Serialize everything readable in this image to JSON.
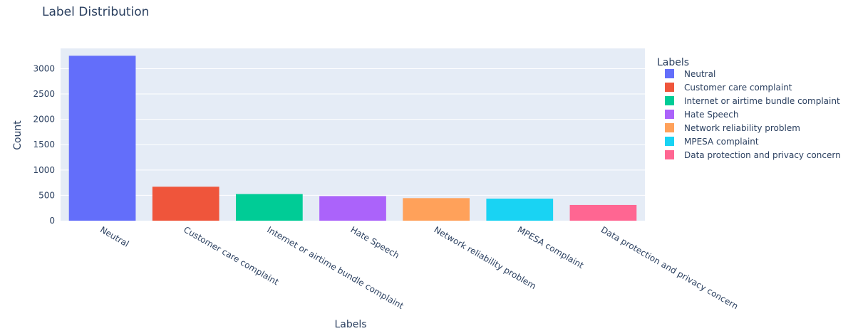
{
  "chart_data": {
    "type": "bar",
    "title": "Label Distribution",
    "xlabel": "Labels",
    "ylabel": "Count",
    "ylim": [
      0,
      3400
    ],
    "yticks": [
      0,
      500,
      1000,
      1500,
      2000,
      2500,
      3000
    ],
    "grid": true,
    "legend_title": "Labels",
    "legend_position": "right",
    "categories": [
      "Neutral",
      "Customer care complaint",
      "Internet or airtime bundle complaint",
      "Hate Speech",
      "Network reliability problem",
      "MPESA complaint",
      "Data protection and privacy concern"
    ],
    "values": [
      3255,
      670,
      525,
      485,
      445,
      435,
      310
    ],
    "colors": [
      "#636efa",
      "#ef553b",
      "#00cc96",
      "#ab63fa",
      "#ffa15a",
      "#19d3f3",
      "#ff6692"
    ],
    "plot_background": "#e5ecf6"
  }
}
